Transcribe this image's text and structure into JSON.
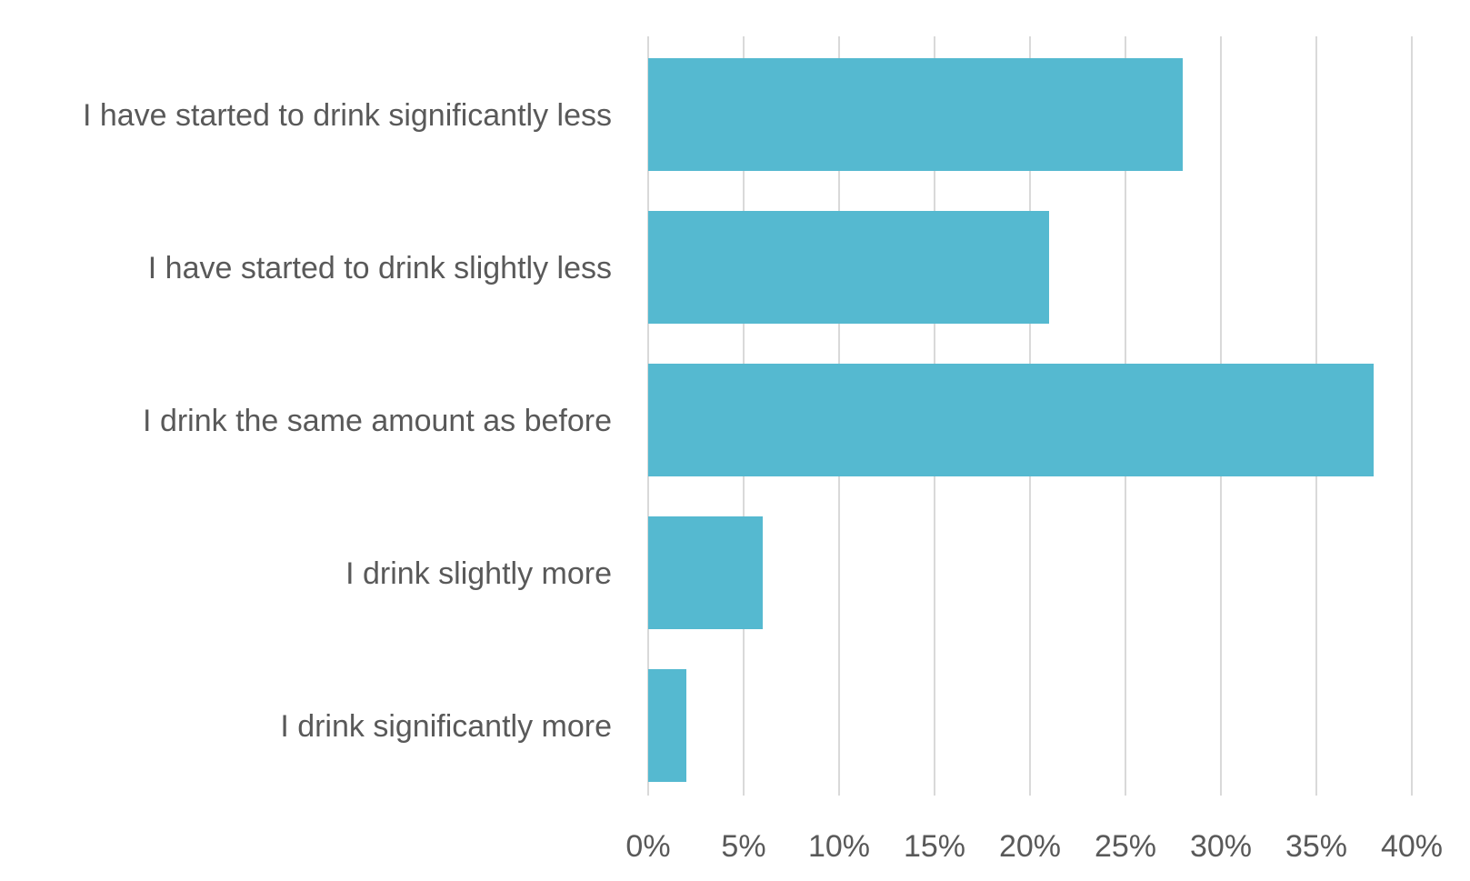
{
  "chart_data": {
    "type": "bar",
    "orientation": "horizontal",
    "categories": [
      "I have started to drink significantly less",
      "I have started to drink slightly less",
      "I drink the same amount as before",
      "I drink slightly more",
      "I drink significantly more"
    ],
    "values": [
      28,
      21,
      38,
      6,
      2
    ],
    "xlim": [
      0,
      40
    ],
    "x_ticks": [
      0,
      5,
      10,
      15,
      20,
      25,
      30,
      35,
      40
    ],
    "x_tick_labels": [
      "0%",
      "5%",
      "10%",
      "15%",
      "20%",
      "25%",
      "30%",
      "35%",
      "40%"
    ],
    "grid": "vertical",
    "legend": "none",
    "bar_color": "#55b9d0",
    "grid_color": "#d9d9d9",
    "text_color": "#595959"
  }
}
